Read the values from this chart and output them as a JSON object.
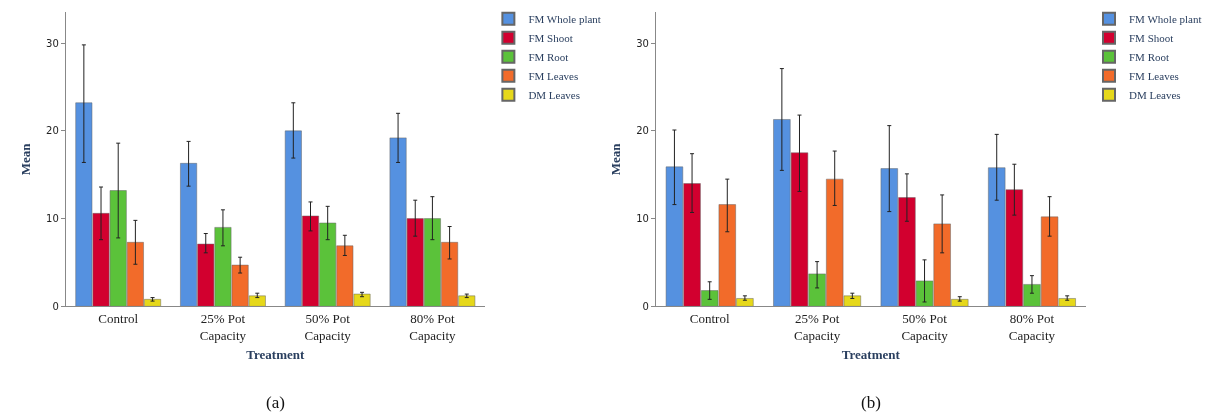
{
  "chart_data": [
    {
      "type": "bar",
      "xlabel": "Treatment",
      "ylabel": "Mean",
      "categories": [
        "Control",
        "25% Pot Capacity",
        "50% Pot Capacity",
        "80% Pot Capacity"
      ],
      "ylim": [
        0,
        33.5
      ],
      "yticks": [
        0,
        10,
        20,
        30
      ],
      "legend": "top right",
      "annotations": [
        "(a)"
      ],
      "series": [
        {
          "name": "FM Whole plant",
          "color": "#5591e0",
          "values": [
            23.2,
            16.3,
            20.0,
            19.2
          ],
          "errors": [
            [
              16.4,
              29.8
            ],
            [
              13.7,
              18.8
            ],
            [
              16.9,
              23.2
            ],
            [
              16.4,
              22.0
            ]
          ]
        },
        {
          "name": "FM Shoot",
          "color": "#d2002f",
          "values": [
            10.6,
            7.1,
            10.3,
            10.0
          ],
          "errors": [
            [
              7.6,
              13.6
            ],
            [
              6.1,
              8.3
            ],
            [
              8.6,
              11.9
            ],
            [
              8.0,
              12.1
            ]
          ]
        },
        {
          "name": "FM Root",
          "color": "#5bc23a",
          "values": [
            13.2,
            9.0,
            9.5,
            10.0
          ],
          "errors": [
            [
              7.8,
              18.6
            ],
            [
              6.9,
              11.0
            ],
            [
              7.6,
              11.4
            ],
            [
              7.6,
              12.5
            ]
          ]
        },
        {
          "name": "FM Leaves",
          "color": "#f26b2a",
          "values": [
            7.3,
            4.7,
            6.9,
            7.3
          ],
          "errors": [
            [
              4.8,
              9.8
            ],
            [
              3.8,
              5.6
            ],
            [
              5.8,
              8.1
            ],
            [
              5.4,
              9.1
            ]
          ]
        },
        {
          "name": "DM Leaves",
          "color": "#e6d81a",
          "values": [
            0.8,
            1.2,
            1.4,
            1.2
          ],
          "errors": [
            [
              0.6,
              1.0
            ],
            [
              1.0,
              1.5
            ],
            [
              1.1,
              1.6
            ],
            [
              1.0,
              1.4
            ]
          ]
        }
      ]
    },
    {
      "type": "bar",
      "xlabel": "Treatment",
      "ylabel": "Mean",
      "categories": [
        "Control",
        "25% Pot Capacity",
        "50% Pot Capacity",
        "80% Pot Capacity"
      ],
      "ylim": [
        0,
        33.5
      ],
      "yticks": [
        0,
        10,
        20,
        30
      ],
      "legend": "top right",
      "annotations": [
        "(b)"
      ],
      "series": [
        {
          "name": "FM Whole plant",
          "color": "#5591e0",
          "values": [
            15.9,
            21.3,
            15.7,
            15.8
          ],
          "errors": [
            [
              11.6,
              20.1
            ],
            [
              15.5,
              27.1
            ],
            [
              10.8,
              20.6
            ],
            [
              12.1,
              19.6
            ]
          ]
        },
        {
          "name": "FM Shoot",
          "color": "#d2002f",
          "values": [
            14.0,
            17.5,
            12.4,
            13.3
          ],
          "errors": [
            [
              10.7,
              17.4
            ],
            [
              13.1,
              21.8
            ],
            [
              9.7,
              15.1
            ],
            [
              10.4,
              16.2
            ]
          ]
        },
        {
          "name": "FM Root",
          "color": "#5bc23a",
          "values": [
            1.8,
            3.7,
            2.9,
            2.5
          ],
          "errors": [
            [
              0.8,
              2.8
            ],
            [
              2.1,
              5.1
            ],
            [
              0.5,
              5.3
            ],
            [
              1.5,
              3.5
            ]
          ]
        },
        {
          "name": "FM Leaves",
          "color": "#f26b2a",
          "values": [
            11.6,
            14.5,
            9.4,
            10.2
          ],
          "errors": [
            [
              8.5,
              14.5
            ],
            [
              11.5,
              17.7
            ],
            [
              6.1,
              12.7
            ],
            [
              8.0,
              12.5
            ]
          ]
        },
        {
          "name": "DM Leaves",
          "color": "#e6d81a",
          "values": [
            0.9,
            1.2,
            0.8,
            0.9
          ],
          "errors": [
            [
              0.7,
              1.2
            ],
            [
              0.9,
              1.5
            ],
            [
              0.6,
              1.1
            ],
            [
              0.7,
              1.2
            ]
          ]
        }
      ]
    }
  ]
}
